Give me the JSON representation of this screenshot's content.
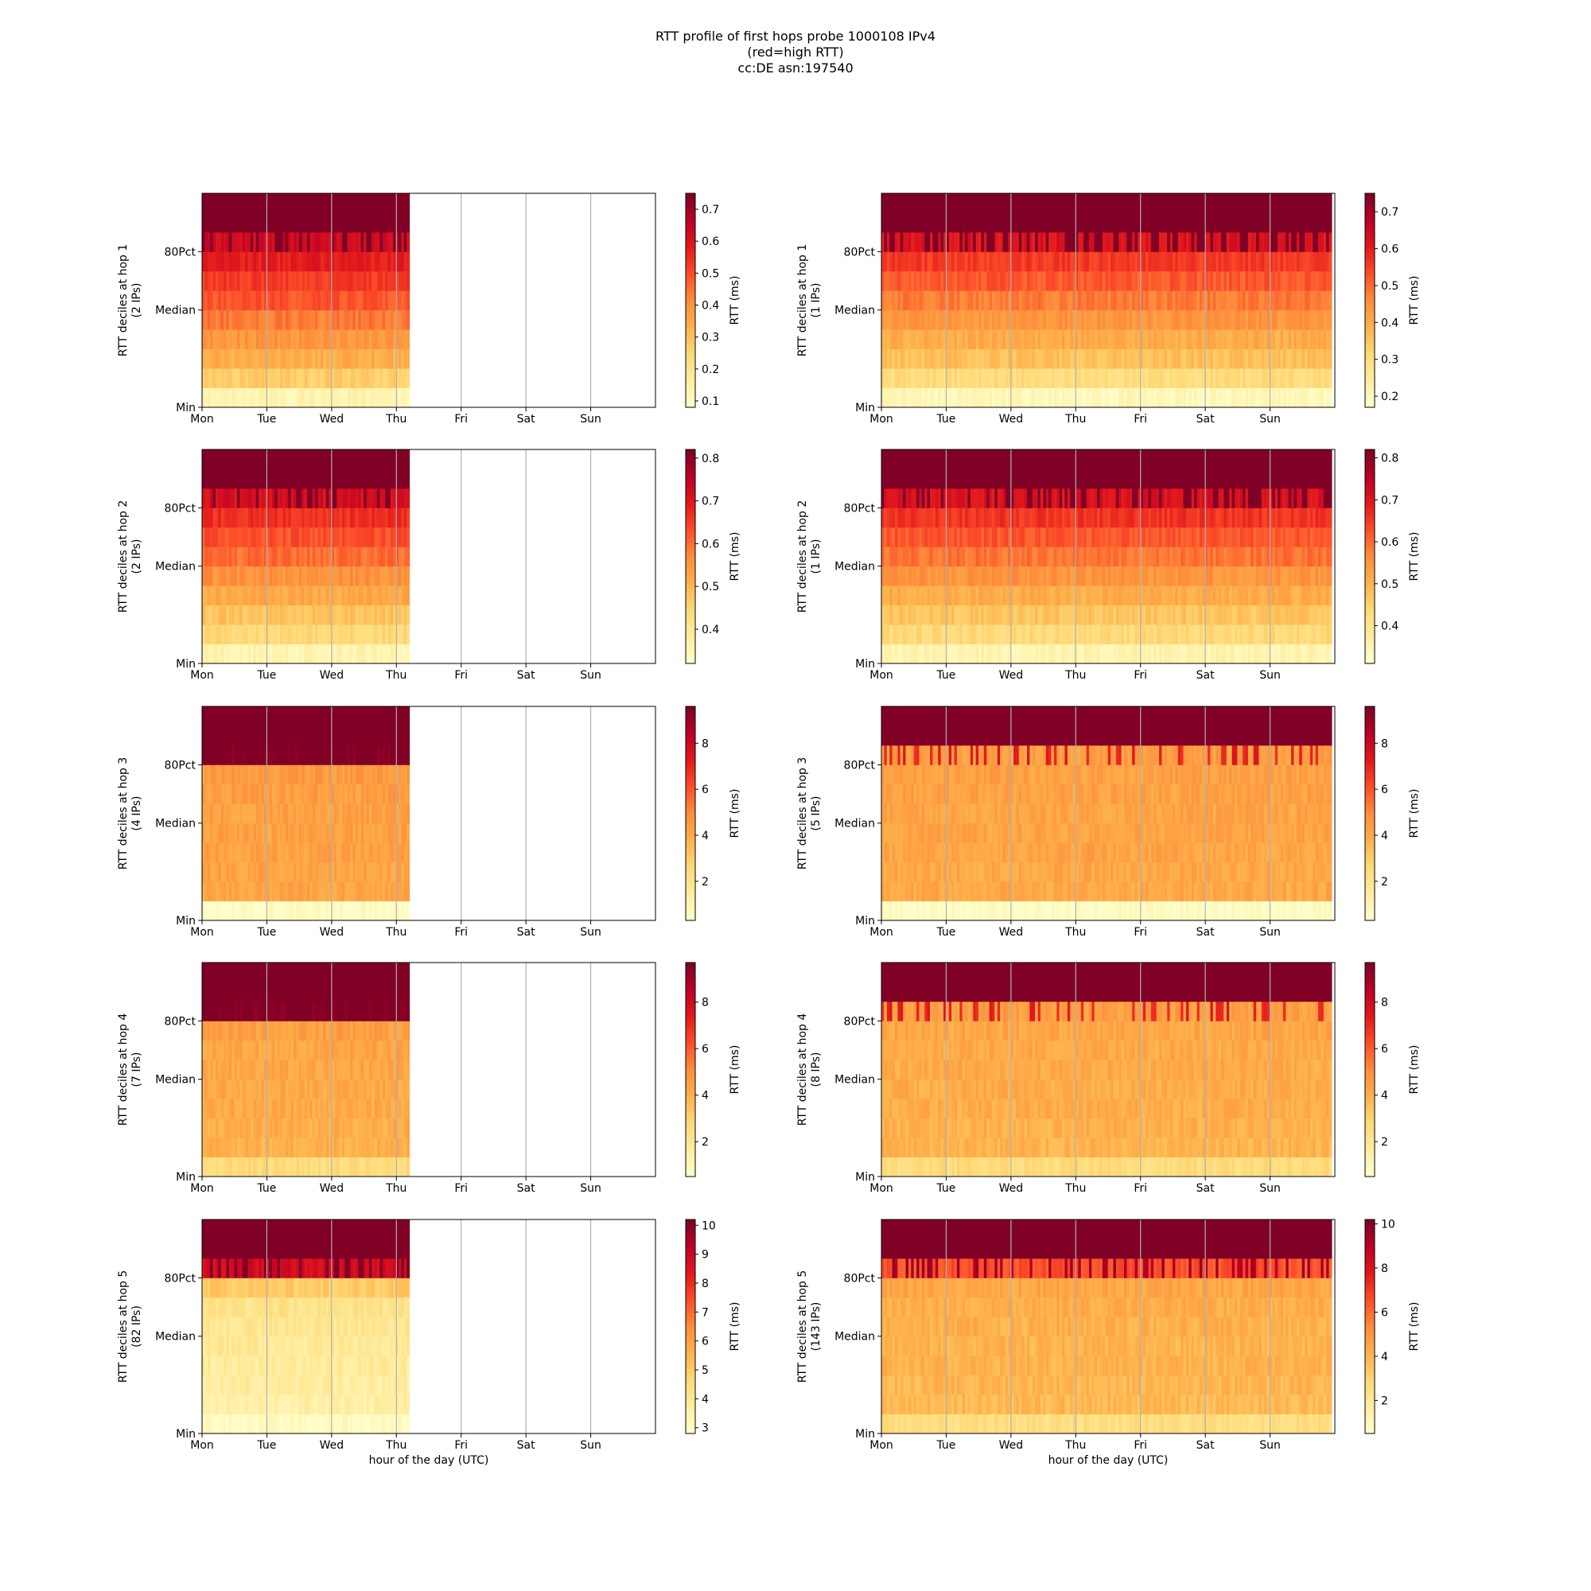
{
  "figure": {
    "title_lines": [
      "RTT profile of first hops probe 1000108 IPv4",
      "(red=high RTT)",
      "cc:DE asn:197540"
    ]
  },
  "colors": {
    "colormap": [
      "#ffffcc",
      "#ffeda0",
      "#fed976",
      "#feb24c",
      "#fd8d3c",
      "#fc4e2a",
      "#e31a1c",
      "#bd0026",
      "#800026"
    ],
    "gridline": "#b0b0b0",
    "axis": "#000000",
    "background": "#ffffff"
  },
  "chart_data": [
    {
      "type": "heatmap",
      "position": "left",
      "ylabel": "RTT deciles at hop 1",
      "ylabel2": "(2 IPs)",
      "xlabel": "",
      "x_ticks": [
        "Mon",
        "Tue",
        "Wed",
        "Thu",
        "Fri",
        "Sat",
        "Sun"
      ],
      "y_ticks": [
        "Min",
        "Median",
        "80Pct"
      ],
      "colorbar_label": "RTT (ms)",
      "colorbar_ticks": [
        0.1,
        0.2,
        0.3,
        0.4,
        0.5,
        0.6,
        0.7
      ],
      "vmin": 0.08,
      "vmax": 0.75,
      "data_extent_days": 3.2,
      "decile_rtt_ms": [
        0.13,
        0.27,
        0.34,
        0.39,
        0.44,
        0.49,
        0.53,
        0.58,
        0.63,
        0.75
      ],
      "grid": true
    },
    {
      "type": "heatmap",
      "position": "right",
      "ylabel": "RTT deciles at hop 1",
      "ylabel2": "(1 IPs)",
      "xlabel": "",
      "x_ticks": [
        "Mon",
        "Tue",
        "Wed",
        "Thu",
        "Fri",
        "Sat",
        "Sun"
      ],
      "y_ticks": [
        "Min",
        "Median",
        "80Pct"
      ],
      "colorbar_label": "RTT (ms)",
      "colorbar_ticks": [
        0.2,
        0.3,
        0.4,
        0.5,
        0.6,
        0.7
      ],
      "vmin": 0.17,
      "vmax": 0.75,
      "data_extent_days": 6.95,
      "decile_rtt_ms": [
        0.2,
        0.3,
        0.36,
        0.4,
        0.44,
        0.48,
        0.52,
        0.56,
        0.62,
        0.75
      ],
      "grid": true
    },
    {
      "type": "heatmap",
      "position": "left",
      "ylabel": "RTT deciles at hop 2",
      "ylabel2": "(2 IPs)",
      "xlabel": "",
      "x_ticks": [
        "Mon",
        "Tue",
        "Wed",
        "Thu",
        "Fri",
        "Sat",
        "Sun"
      ],
      "y_ticks": [
        "Min",
        "Median",
        "80Pct"
      ],
      "colorbar_label": "RTT (ms)",
      "colorbar_ticks": [
        0.4,
        0.5,
        0.6,
        0.7,
        0.8
      ],
      "vmin": 0.32,
      "vmax": 0.82,
      "data_extent_days": 3.2,
      "decile_rtt_ms": [
        0.36,
        0.44,
        0.48,
        0.52,
        0.56,
        0.6,
        0.63,
        0.67,
        0.72,
        0.82
      ],
      "grid": true
    },
    {
      "type": "heatmap",
      "position": "right",
      "ylabel": "RTT deciles at hop 2",
      "ylabel2": "(1 IPs)",
      "xlabel": "",
      "x_ticks": [
        "Mon",
        "Tue",
        "Wed",
        "Thu",
        "Fri",
        "Sat",
        "Sun"
      ],
      "y_ticks": [
        "Min",
        "Median",
        "80Pct"
      ],
      "colorbar_label": "RTT (ms)",
      "colorbar_ticks": [
        0.4,
        0.5,
        0.6,
        0.7,
        0.8
      ],
      "vmin": 0.31,
      "vmax": 0.82,
      "data_extent_days": 6.95,
      "decile_rtt_ms": [
        0.35,
        0.43,
        0.47,
        0.51,
        0.55,
        0.59,
        0.62,
        0.66,
        0.71,
        0.82
      ],
      "grid": true
    },
    {
      "type": "heatmap",
      "position": "left",
      "ylabel": "RTT deciles at hop 3",
      "ylabel2": "(4 IPs)",
      "xlabel": "",
      "x_ticks": [
        "Mon",
        "Tue",
        "Wed",
        "Thu",
        "Fri",
        "Sat",
        "Sun"
      ],
      "y_ticks": [
        "Min",
        "Median",
        "80Pct"
      ],
      "colorbar_label": "RTT (ms)",
      "colorbar_ticks": [
        2,
        4,
        6,
        8
      ],
      "vmin": 0.3,
      "vmax": 9.6,
      "data_extent_days": 3.2,
      "decile_rtt_ms": [
        0.5,
        4.2,
        4.2,
        4.3,
        4.3,
        4.3,
        4.4,
        4.5,
        9.6,
        9.6
      ],
      "grid": true
    },
    {
      "type": "heatmap",
      "position": "right",
      "ylabel": "RTT deciles at hop 3",
      "ylabel2": "(5 IPs)",
      "xlabel": "",
      "x_ticks": [
        "Mon",
        "Tue",
        "Wed",
        "Thu",
        "Fri",
        "Sat",
        "Sun"
      ],
      "y_ticks": [
        "Min",
        "Median",
        "80Pct"
      ],
      "colorbar_label": "RTT (ms)",
      "colorbar_ticks": [
        2,
        4,
        6,
        8
      ],
      "vmin": 0.3,
      "vmax": 9.6,
      "data_extent_days": 6.95,
      "decile_rtt_ms": [
        0.5,
        4.1,
        4.1,
        4.2,
        4.2,
        4.2,
        4.3,
        4.3,
        4.4,
        9.6
      ],
      "grid": true
    },
    {
      "type": "heatmap",
      "position": "left",
      "ylabel": "RTT deciles at hop 4",
      "ylabel2": "(7 IPs)",
      "xlabel": "",
      "x_ticks": [
        "Mon",
        "Tue",
        "Wed",
        "Thu",
        "Fri",
        "Sat",
        "Sun"
      ],
      "y_ticks": [
        "Min",
        "Median",
        "80Pct"
      ],
      "colorbar_label": "RTT (ms)",
      "colorbar_ticks": [
        2,
        4,
        6,
        8
      ],
      "vmin": 0.5,
      "vmax": 9.7,
      "data_extent_days": 3.2,
      "decile_rtt_ms": [
        2.6,
        4.0,
        4.1,
        4.2,
        4.2,
        4.3,
        4.3,
        4.5,
        9.7,
        9.7
      ],
      "grid": true
    },
    {
      "type": "heatmap",
      "position": "right",
      "ylabel": "RTT deciles at hop 4",
      "ylabel2": "(8 IPs)",
      "xlabel": "",
      "x_ticks": [
        "Mon",
        "Tue",
        "Wed",
        "Thu",
        "Fri",
        "Sat",
        "Sun"
      ],
      "y_ticks": [
        "Min",
        "Median",
        "80Pct"
      ],
      "colorbar_label": "RTT (ms)",
      "colorbar_ticks": [
        2,
        4,
        6,
        8
      ],
      "vmin": 0.5,
      "vmax": 9.7,
      "data_extent_days": 6.95,
      "decile_rtt_ms": [
        2.6,
        3.9,
        4.0,
        4.1,
        4.1,
        4.2,
        4.2,
        4.3,
        4.5,
        9.7
      ],
      "grid": true
    },
    {
      "type": "heatmap",
      "position": "left",
      "ylabel": "RTT deciles at hop 5",
      "ylabel2": "(82 IPs)",
      "xlabel": "hour of the day (UTC)",
      "x_ticks": [
        "Mon",
        "Tue",
        "Wed",
        "Thu",
        "Fri",
        "Sat",
        "Sun"
      ],
      "y_ticks": [
        "Min",
        "Median",
        "80Pct"
      ],
      "colorbar_label": "RTT (ms)",
      "colorbar_ticks": [
        3,
        4,
        5,
        6,
        7,
        8,
        9,
        10
      ],
      "vmin": 2.8,
      "vmax": 10.2,
      "data_extent_days": 3.2,
      "decile_rtt_ms": [
        3.0,
        3.6,
        3.7,
        3.8,
        3.9,
        4.0,
        4.2,
        5.0,
        8.8,
        10.2
      ],
      "grid": true
    },
    {
      "type": "heatmap",
      "position": "right",
      "ylabel": "RTT deciles at hop 5",
      "ylabel2": "(143 IPs)",
      "xlabel": "hour of the day (UTC)",
      "x_ticks": [
        "Mon",
        "Tue",
        "Wed",
        "Thu",
        "Fri",
        "Sat",
        "Sun"
      ],
      "y_ticks": [
        "Min",
        "Median",
        "80Pct"
      ],
      "colorbar_label": "RTT (ms)",
      "colorbar_ticks": [
        2,
        4,
        6,
        8,
        10
      ],
      "vmin": 0.5,
      "vmax": 10.2,
      "data_extent_days": 6.95,
      "decile_rtt_ms": [
        2.6,
        3.9,
        4.0,
        4.1,
        4.1,
        4.2,
        4.3,
        4.5,
        6.5,
        10.2
      ],
      "grid": true
    }
  ]
}
